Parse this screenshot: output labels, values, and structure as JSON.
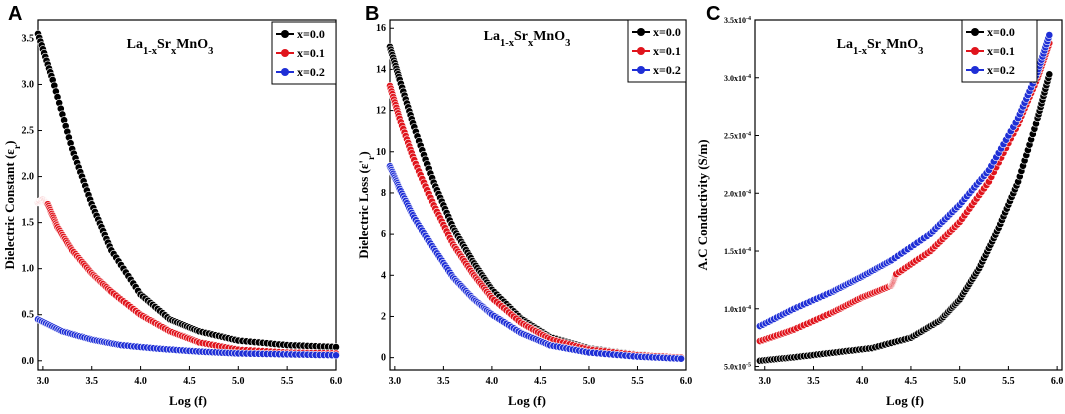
{
  "chart_data": [
    {
      "panel": "A",
      "type": "scatter",
      "title": "La1-xSrxMnO3",
      "title_parts": {
        "base1": "La",
        "sub1": "1-x",
        "base2": "Sr",
        "sub2": "x",
        "base3": "MnO",
        "sub3": "3"
      },
      "xlabel": "Log (f)",
      "ylabel": "Dielectric Constant (εr)",
      "ylabel_parts": {
        "base": "Dielectric Constant (ε",
        "sub": "r",
        "end": ")"
      },
      "xlim": [
        2.95,
        6.0
      ],
      "ylim": [
        -0.1,
        3.7
      ],
      "xticks": [
        "3.0",
        "3.5",
        "4.0",
        "4.5",
        "5.0",
        "5.5",
        "6.0"
      ],
      "yticks": [
        "0.0",
        "0.5",
        "1.0",
        "1.5",
        "2.0",
        "2.5",
        "3.0",
        "3.5"
      ],
      "series": [
        {
          "name": "x=0.0",
          "color": "#000000",
          "x": [
            2.95,
            3.1,
            3.3,
            3.5,
            3.7,
            4.0,
            4.3,
            4.6,
            5.0,
            5.5,
            6.0
          ],
          "y": [
            3.55,
            3.05,
            2.3,
            1.7,
            1.2,
            0.72,
            0.45,
            0.32,
            0.22,
            0.17,
            0.15
          ]
        },
        {
          "name": "x=0.1",
          "color": "#e0141c",
          "x": [
            2.95,
            3.0,
            3.05,
            3.15,
            3.3,
            3.5,
            3.7,
            4.0,
            4.3,
            4.6,
            5.0,
            5.5,
            6.0
          ],
          "y": [
            1.72,
            1.75,
            1.7,
            1.45,
            1.2,
            0.95,
            0.75,
            0.5,
            0.32,
            0.2,
            0.12,
            0.09,
            0.08
          ]
        },
        {
          "name": "x=0.2",
          "color": "#1f2fd6",
          "x": [
            2.95,
            3.2,
            3.5,
            3.8,
            4.2,
            4.6,
            5.0,
            5.5,
            6.0
          ],
          "y": [
            0.45,
            0.32,
            0.23,
            0.17,
            0.13,
            0.1,
            0.08,
            0.07,
            0.06
          ]
        }
      ]
    },
    {
      "panel": "B",
      "type": "scatter",
      "title": "La1-xSrxMnO3",
      "title_parts": {
        "base1": "La",
        "sub1": "1-x",
        "base2": "Sr",
        "sub2": "x",
        "base3": "MnO",
        "sub3": "3"
      },
      "xlabel": "Log (f)",
      "ylabel": "Dielectric Loss (ε'r)",
      "ylabel_parts": {
        "base": "Dielectric Loss (ε'",
        "sub": "r",
        "end": ")"
      },
      "xlim": [
        2.95,
        6.0
      ],
      "ylim": [
        -0.6,
        16.4
      ],
      "xticks": [
        "3.0",
        "3.5",
        "4.0",
        "4.5",
        "5.0",
        "5.5",
        "6.0"
      ],
      "yticks": [
        "0",
        "2",
        "4",
        "6",
        "8",
        "10",
        "12",
        "14",
        "16"
      ],
      "series": [
        {
          "name": "x=0.0",
          "color": "#000000",
          "x": [
            2.95,
            3.05,
            3.2,
            3.4,
            3.6,
            3.8,
            4.0,
            4.3,
            4.6,
            5.0,
            5.5,
            5.95
          ],
          "y": [
            15.1,
            13.5,
            11.2,
            8.5,
            6.3,
            4.7,
            3.3,
            1.9,
            1.0,
            0.45,
            0.15,
            0.0
          ]
        },
        {
          "name": "x=0.1",
          "color": "#e0141c",
          "x": [
            2.95,
            3.05,
            3.2,
            3.4,
            3.6,
            3.8,
            4.0,
            4.3,
            4.6,
            5.0,
            5.5,
            5.95
          ],
          "y": [
            13.2,
            11.6,
            9.6,
            7.4,
            5.5,
            4.1,
            2.9,
            1.7,
            0.9,
            0.4,
            0.12,
            0.0
          ]
        },
        {
          "name": "x=0.2",
          "color": "#1f2fd6",
          "x": [
            2.95,
            3.05,
            3.2,
            3.4,
            3.6,
            3.8,
            4.0,
            4.3,
            4.6,
            5.0,
            5.5,
            5.95
          ],
          "y": [
            9.3,
            8.2,
            6.8,
            5.3,
            3.9,
            2.9,
            2.1,
            1.2,
            0.6,
            0.25,
            0.05,
            -0.05
          ]
        }
      ]
    },
    {
      "panel": "C",
      "type": "scatter",
      "title": "La1-xSrxMnO3",
      "title_parts": {
        "base1": "La",
        "sub1": "1-x",
        "base2": "Sr",
        "sub2": "x",
        "base3": "MnO",
        "sub3": "3"
      },
      "xlabel": "Log (f)",
      "ylabel": "A.C Conductivity (S/m)",
      "ylabel_parts": {
        "base": "A.C Conductivity (S/m)",
        "sub": "",
        "end": ""
      },
      "xlim": [
        2.9,
        6.05
      ],
      "ylim": [
        0.47,
        3.5
      ],
      "xticks": [
        "3.0",
        "3.5",
        "4.0",
        "4.5",
        "5.0",
        "5.5",
        "6.0"
      ],
      "yticks": [
        "5.0x10",
        "1.0x10",
        "1.5x10",
        "2.0x10",
        "2.5x10",
        "3.0x10",
        "3.5x10"
      ],
      "yticks_exp": [
        "-5",
        "-4",
        "-4",
        "-4",
        "-4",
        "-4",
        "-4"
      ],
      "series": [
        {
          "name": "x=0.0",
          "color": "#000000",
          "x": [
            2.95,
            3.3,
            3.7,
            4.1,
            4.5,
            4.8,
            5.0,
            5.2,
            5.4,
            5.6,
            5.8,
            5.92
          ],
          "y": [
            0.55,
            0.58,
            0.62,
            0.66,
            0.75,
            0.9,
            1.08,
            1.35,
            1.7,
            2.1,
            2.65,
            3.03
          ]
        },
        {
          "name": "x=0.1",
          "color": "#e0141c",
          "x": [
            2.95,
            3.3,
            3.7,
            4.0,
            4.3,
            4.35,
            4.7,
            5.0,
            5.3,
            5.6,
            5.8,
            5.92
          ],
          "y": [
            0.72,
            0.82,
            0.97,
            1.1,
            1.2,
            1.3,
            1.5,
            1.75,
            2.1,
            2.6,
            3.0,
            3.3
          ]
        },
        {
          "name": "x=0.2",
          "color": "#1f2fd6",
          "x": [
            2.95,
            3.3,
            3.7,
            4.0,
            4.3,
            4.7,
            5.0,
            5.3,
            5.6,
            5.8,
            5.92
          ],
          "y": [
            0.85,
            1.0,
            1.15,
            1.28,
            1.42,
            1.65,
            1.9,
            2.2,
            2.65,
            3.05,
            3.37
          ]
        }
      ]
    }
  ]
}
